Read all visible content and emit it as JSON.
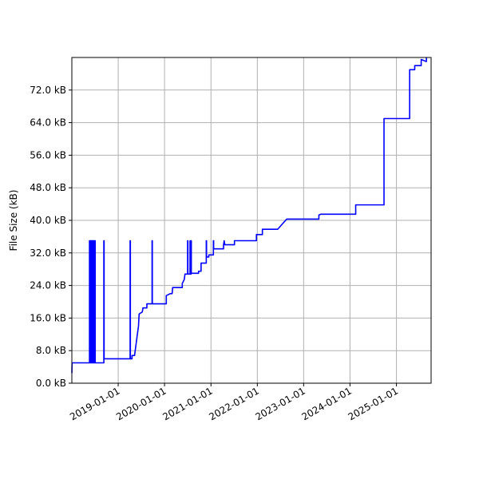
{
  "chart_data": {
    "type": "line",
    "title": "",
    "xlabel": "",
    "ylabel": "File Size (kB)",
    "grid": true,
    "legend": "none",
    "xlim": [
      "2018-01-01",
      "2025-10-01"
    ],
    "ylim": [
      0,
      80
    ],
    "y_ticks": [
      {
        "value": 0,
        "label": "0.0 kB"
      },
      {
        "value": 8,
        "label": "8.0 kB"
      },
      {
        "value": 16,
        "label": "16.0 kB"
      },
      {
        "value": 24,
        "label": "24.0 kB"
      },
      {
        "value": 32,
        "label": "32.0 kB"
      },
      {
        "value": 40,
        "label": "40.0 kB"
      },
      {
        "value": 48,
        "label": "48.0 kB"
      },
      {
        "value": 56,
        "label": "56.0 kB"
      },
      {
        "value": 64,
        "label": "64.0 kB"
      },
      {
        "value": 72,
        "label": "72.0 kB"
      }
    ],
    "x_ticks": [
      {
        "value": "2019-01-01",
        "label": "2019-01-01"
      },
      {
        "value": "2020-01-01",
        "label": "2020-01-01"
      },
      {
        "value": "2021-01-01",
        "label": "2021-01-01"
      },
      {
        "value": "2022-01-01",
        "label": "2022-01-01"
      },
      {
        "value": "2023-01-01",
        "label": "2023-01-01"
      },
      {
        "value": "2024-01-01",
        "label": "2024-01-01"
      },
      {
        "value": "2025-01-01",
        "label": "2025-01-01"
      }
    ],
    "series": [
      {
        "color": "#0000ff",
        "points": [
          [
            "2018-01-01",
            2.5
          ],
          [
            "2018-01-03",
            5.0
          ],
          [
            "2018-05-20",
            5.0
          ],
          [
            "2018-05-20",
            35.0
          ],
          [
            "2018-05-25",
            35.0
          ],
          [
            "2018-05-25",
            5.0
          ],
          [
            "2018-05-30",
            5.0
          ],
          [
            "2018-05-30",
            35.0
          ],
          [
            "2018-06-05",
            35.0
          ],
          [
            "2018-06-05",
            5.0
          ],
          [
            "2018-06-10",
            5.0
          ],
          [
            "2018-06-10",
            35.0
          ],
          [
            "2018-06-15",
            35.0
          ],
          [
            "2018-06-15",
            5.0
          ],
          [
            "2018-06-20",
            5.0
          ],
          [
            "2018-06-20",
            35.0
          ],
          [
            "2018-06-25",
            35.0
          ],
          [
            "2018-06-25",
            5.0
          ],
          [
            "2018-07-01",
            5.0
          ],
          [
            "2018-07-01",
            35.0
          ],
          [
            "2018-07-04",
            35.0
          ],
          [
            "2018-07-04",
            5.0
          ],
          [
            "2018-09-10",
            5.0
          ],
          [
            "2018-09-10",
            35.0
          ],
          [
            "2018-09-12",
            35.0
          ],
          [
            "2018-09-12",
            6.0
          ],
          [
            "2019-04-05",
            6.0
          ],
          [
            "2019-04-05",
            35.0
          ],
          [
            "2019-04-07",
            35.0
          ],
          [
            "2019-04-07",
            6.0
          ],
          [
            "2019-04-20",
            6.0
          ],
          [
            "2019-04-20",
            6.8
          ],
          [
            "2019-05-10",
            6.8
          ],
          [
            "2019-06-01",
            12.0
          ],
          [
            "2019-06-10",
            14.0
          ],
          [
            "2019-06-15",
            17.0
          ],
          [
            "2019-07-10",
            17.5
          ],
          [
            "2019-07-15",
            18.5
          ],
          [
            "2019-08-15",
            18.5
          ],
          [
            "2019-08-15",
            19.5
          ],
          [
            "2019-09-25",
            19.5
          ],
          [
            "2019-09-25",
            35.0
          ],
          [
            "2019-09-27",
            35.0
          ],
          [
            "2019-09-27",
            19.5
          ],
          [
            "2020-01-15",
            19.5
          ],
          [
            "2020-01-15",
            21.5
          ],
          [
            "2020-02-15",
            22.0
          ],
          [
            "2020-03-01",
            22.0
          ],
          [
            "2020-03-05",
            23.5
          ],
          [
            "2020-05-20",
            23.5
          ],
          [
            "2020-05-20",
            24.5
          ],
          [
            "2020-06-05",
            25.5
          ],
          [
            "2020-06-10",
            26.8
          ],
          [
            "2020-07-01",
            26.8
          ],
          [
            "2020-07-01",
            35.0
          ],
          [
            "2020-07-03",
            35.0
          ],
          [
            "2020-07-03",
            26.8
          ],
          [
            "2020-07-20",
            26.8
          ],
          [
            "2020-07-20",
            35.0
          ],
          [
            "2020-07-22",
            35.0
          ],
          [
            "2020-07-22",
            26.8
          ],
          [
            "2020-07-28",
            26.8
          ],
          [
            "2020-07-28",
            35.0
          ],
          [
            "2020-07-30",
            35.0
          ],
          [
            "2020-07-30",
            27.0
          ],
          [
            "2020-09-25",
            27.0
          ],
          [
            "2020-09-25",
            27.5
          ],
          [
            "2020-10-15",
            27.5
          ],
          [
            "2020-10-15",
            29.5
          ],
          [
            "2020-11-25",
            29.5
          ],
          [
            "2020-11-25",
            35.0
          ],
          [
            "2020-11-27",
            35.0
          ],
          [
            "2020-11-27",
            31.0
          ],
          [
            "2020-12-15",
            31.0
          ],
          [
            "2020-12-15",
            31.5
          ],
          [
            "2021-01-20",
            31.5
          ],
          [
            "2021-01-20",
            35.0
          ],
          [
            "2021-01-22",
            35.0
          ],
          [
            "2021-01-22",
            33.0
          ],
          [
            "2021-04-10",
            33.0
          ],
          [
            "2021-04-10",
            34.0
          ],
          [
            "2021-04-15",
            35.0
          ],
          [
            "2021-04-20",
            34.0
          ],
          [
            "2021-07-05",
            34.0
          ],
          [
            "2021-07-05",
            35.0
          ],
          [
            "2021-12-25",
            35.0
          ],
          [
            "2021-12-25",
            36.5
          ],
          [
            "2022-02-10",
            36.5
          ],
          [
            "2022-02-10",
            37.8
          ],
          [
            "2022-06-10",
            37.8
          ],
          [
            "2022-08-20",
            40.3
          ],
          [
            "2023-05-01",
            40.3
          ],
          [
            "2023-05-01",
            41.3
          ],
          [
            "2023-05-15",
            41.5
          ],
          [
            "2024-02-15",
            41.5
          ],
          [
            "2024-02-15",
            43.8
          ],
          [
            "2024-09-25",
            43.8
          ],
          [
            "2024-09-25",
            65.0
          ],
          [
            "2025-04-15",
            65.0
          ],
          [
            "2025-04-15",
            77.0
          ],
          [
            "2025-05-25",
            77.0
          ],
          [
            "2025-05-25",
            78.0
          ],
          [
            "2025-07-15",
            78.0
          ],
          [
            "2025-07-15",
            79.5
          ],
          [
            "2025-08-25",
            79.0
          ],
          [
            "2025-08-25",
            80.0
          ]
        ]
      }
    ]
  }
}
